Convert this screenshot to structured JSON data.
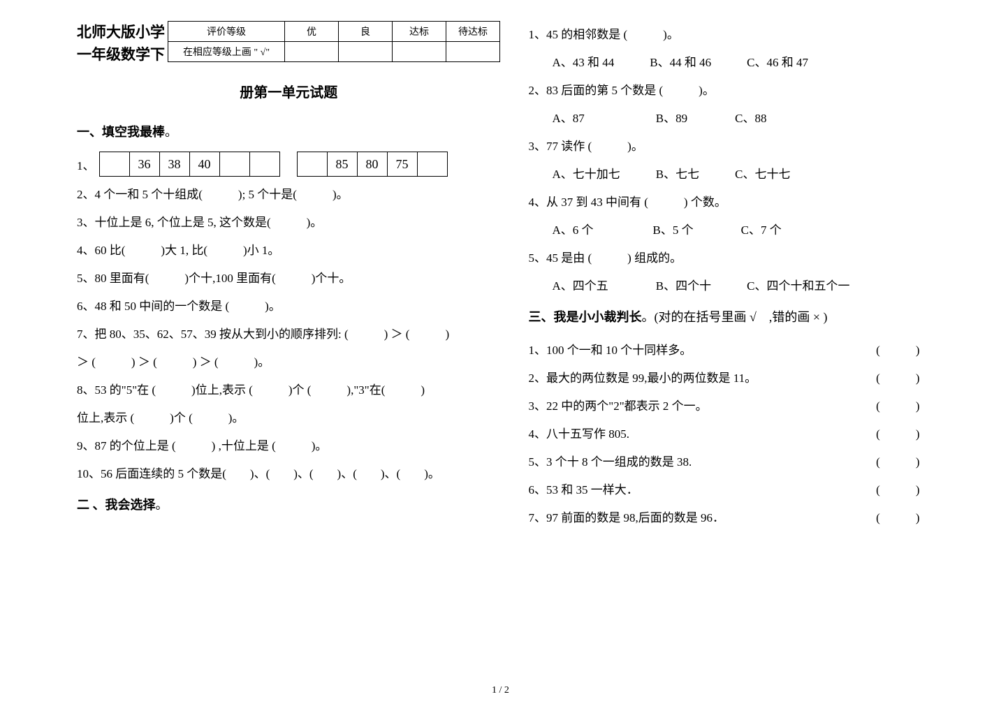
{
  "header": {
    "school_line1": "北师大版小学",
    "school_line2": "一年级数学下",
    "grade_table": {
      "columns": [
        "评价等级",
        "优",
        "良",
        "达标",
        "待达标"
      ],
      "row_label": "在相应等级上画 \" √\""
    },
    "unit_title": "册第一单元试题"
  },
  "section1": {
    "title_prefix": "一、填空我最棒",
    "suffix": "。",
    "q1_label": "1、",
    "seq1": [
      "",
      "36",
      "38",
      "40",
      "",
      ""
    ],
    "seq2": [
      "",
      "85",
      "80",
      "75",
      ""
    ],
    "q2": "2、4 个一和 5 个十组成(　　　); 5 个十是(　　　)。",
    "q3": "3、十位上是 6, 个位上是 5, 这个数是(　　　)。",
    "q4": "4、60 比(　　　)大 1, 比(　　　)小 1。",
    "q5": "5、80 里面有(　　　)个十,100 里面有(　　　)个十。",
    "q6": "6、48 和 50 中间的一个数是 (　　　)。",
    "q7a": "7、把 80、35、62、57、39 按从大到小的顺序排列: (　　　) ＞ (　　　)",
    "q7b": "＞ (　　　) ＞ (　　　) ＞ (　　　)。",
    "q8a": "8、53 的\"5\"在 (　　　)位上,表示 (　　　)个 (　　　),\"3\"在(　　　)",
    "q8b": "位上,表示 (　　　)个 (　　　)。",
    "q9": "9、87 的个位上是 (　　　) ,十位上是 (　　　)。",
    "q10": "10、56 后面连续的 5 个数是(　　)、(　　)、(　　)、(　　)、(　　)。"
  },
  "section2": {
    "title_prefix": "二 、我会选择",
    "suffix": "。",
    "q1": "1、45 的相邻数是 (　　　)。",
    "q1o": "　　A、43 和 44　　　B、44 和 46　　　C、46 和 47",
    "q2": "2、83 后面的第 5 个数是 (　　　)。",
    "q2o": "　　A、87　　　　　　B、89　　　　C、88",
    "q3": "3、77 读作 (　　　)。",
    "q3o": "　　A、七十加七　　　B、七七　　　C、七十七",
    "q4": "4、从 37 到 43 中间有 (　　　) 个数。",
    "q4o": "　　A、6 个　　　　　B、5 个　　　　C、7 个",
    "q5": "5、45 是由 (　　　) 组成的。",
    "q5o": "　　A、四个五　　　　B、四个十　　　C、四个十和五个一"
  },
  "section3": {
    "title_prefix": "三、我是小小裁判长",
    "title_rest": "。(对的在括号里画 √　,错的画 × )",
    "q1t": "1、100 个一和 10 个十同样多。",
    "p": "(　　　)",
    "q2t": "2、最大的两位数是 99,最小的两位数是 11。",
    "q3t": "3、22 中的两个\"2\"都表示 2 个一。",
    "q4t": "4、八十五写作 805.",
    "q5t": "5、3 个十 8 个一组成的数是 38.",
    "q6t": "6、53 和 35 一样大．",
    "q7t": "7、97 前面的数是 98,后面的数是 96．"
  },
  "footer": "1 / 2"
}
